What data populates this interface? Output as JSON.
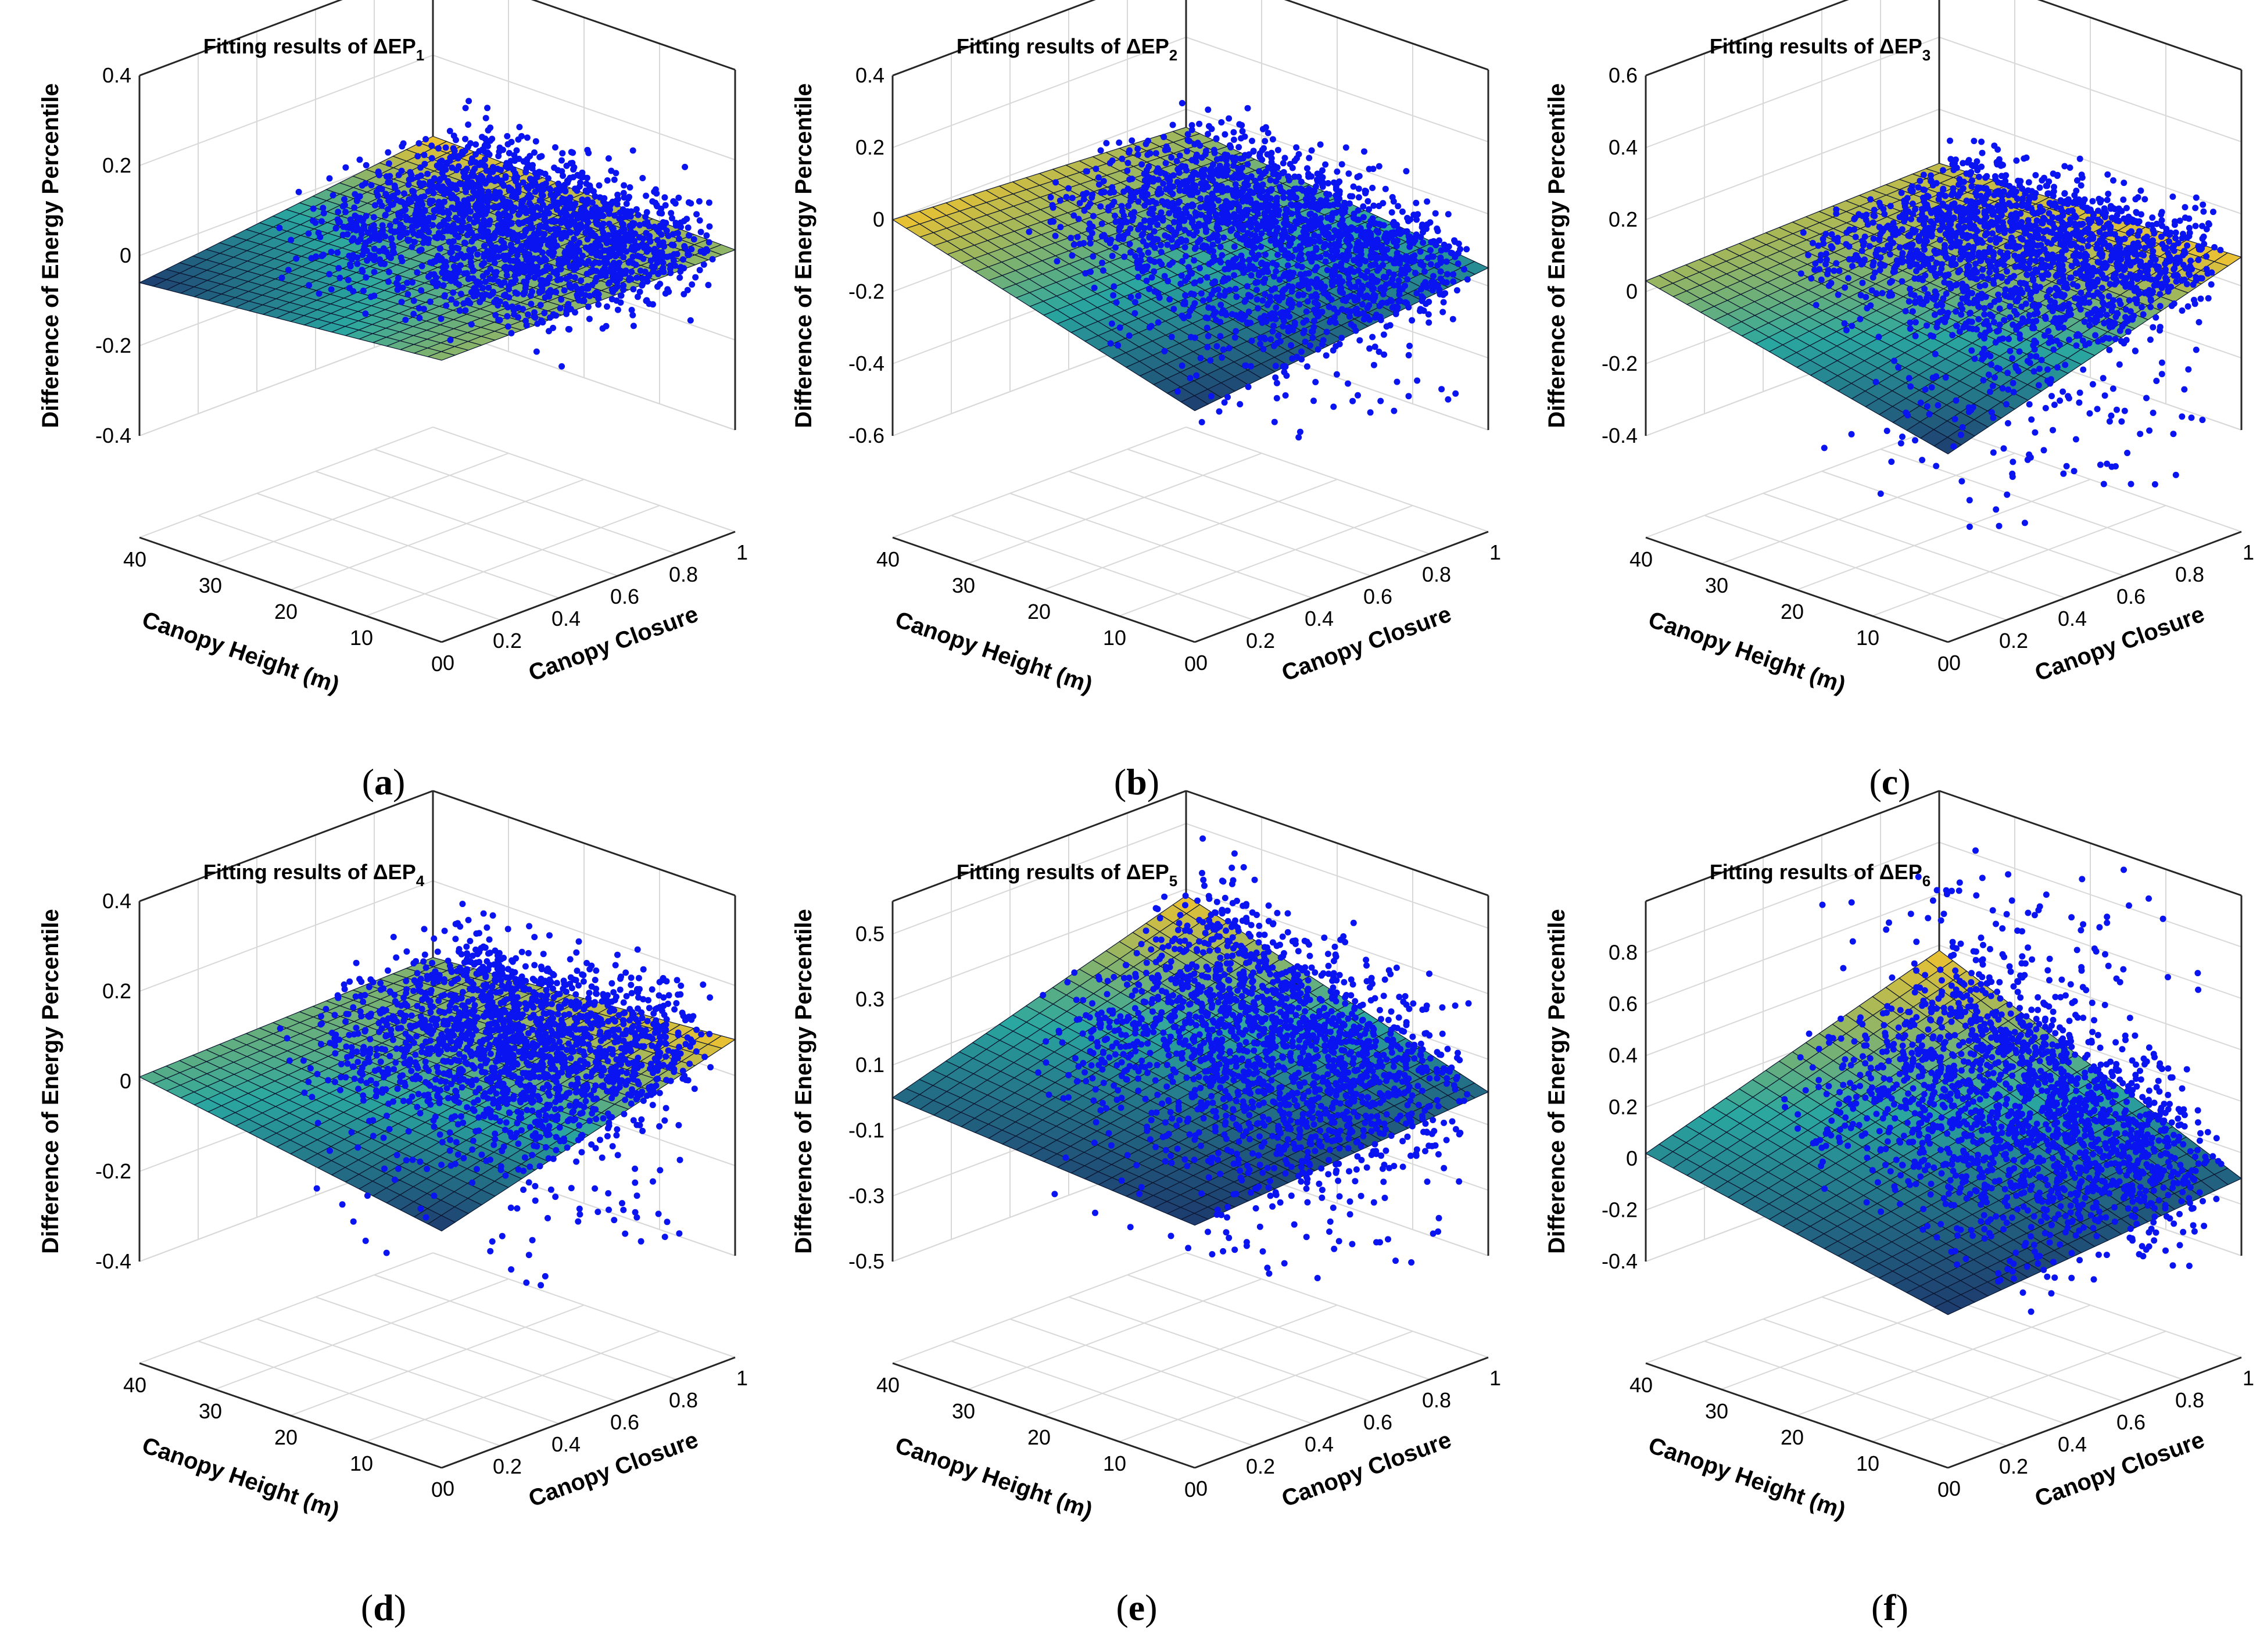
{
  "chart_data": [
    {
      "panel": "a",
      "type": "scatter",
      "surface": true,
      "title": "Fitting results of ΔEP",
      "title_sub": "1",
      "caption_letter": "a",
      "xlabel": "Canopy Closure",
      "ylabel": "Canopy Height (m)",
      "zlabel": "Difference of Energy Percentile",
      "xlim": [
        0,
        1
      ],
      "ylim": [
        0,
        40
      ],
      "zlim": [
        -0.4,
        0.4
      ],
      "xticks": [
        "0",
        "0.2",
        "0.4",
        "0.6",
        "0.8",
        "1"
      ],
      "yticks": [
        "0",
        "10",
        "20",
        "30",
        "40"
      ],
      "zticks": [
        "-0.4",
        "-0.2",
        "0",
        "0.2",
        "0.4"
      ],
      "surface_corners": {
        "x0y0": 0.0,
        "x1y0": 0.0,
        "x0y1": -0.06,
        "x1y1": 0.02
      },
      "points": {
        "count": 1800,
        "x_range": [
          0.3,
          1
        ],
        "y_range": [
          2,
          35
        ],
        "z_spread": 0.06,
        "z_min": -0.28,
        "z_max": 0.37,
        "tail": "none"
      }
    },
    {
      "panel": "b",
      "type": "scatter",
      "surface": true,
      "title": "Fitting results of ΔEP",
      "title_sub": "2",
      "caption_letter": "b",
      "xlabel": "Canopy Closure",
      "ylabel": "Canopy Height (m)",
      "zlabel": "Difference of Energy Percentile",
      "xlim": [
        0,
        1
      ],
      "ylim": [
        0,
        40
      ],
      "zlim": [
        -0.6,
        0.4
      ],
      "xticks": [
        "0",
        "0.2",
        "0.4",
        "0.6",
        "0.8",
        "1"
      ],
      "yticks": [
        "0",
        "10",
        "20",
        "30",
        "40"
      ],
      "zticks": [
        "-0.6",
        "-0.4",
        "-0.2",
        "0",
        "0.2",
        "0.4"
      ],
      "surface_corners": {
        "x0y0": -0.24,
        "x1y0": -0.15,
        "x0y1": 0.0,
        "x1y1": -0.05
      },
      "points": {
        "count": 1800,
        "x_range": [
          0.3,
          1
        ],
        "y_range": [
          2,
          35
        ],
        "z_spread": 0.07,
        "z_min": -0.53,
        "z_max": 0.37,
        "tail": "down"
      }
    },
    {
      "panel": "c",
      "type": "scatter",
      "surface": true,
      "title": "Fitting results of ΔEP",
      "title_sub": "3",
      "caption_letter": "c",
      "xlabel": "Canopy Closure",
      "ylabel": "Canopy Height (m)",
      "zlabel": "Difference of Energy Percentile",
      "xlim": [
        0,
        1
      ],
      "ylim": [
        0,
        40
      ],
      "zlim": [
        -0.4,
        0.6
      ],
      "xticks": [
        "0",
        "0.2",
        "0.4",
        "0.6",
        "0.8",
        "1"
      ],
      "yticks": [
        "0",
        "10",
        "20",
        "30",
        "40"
      ],
      "zticks": [
        "-0.4",
        "-0.2",
        "0",
        "0.2",
        "0.4",
        "0.6"
      ],
      "surface_corners": {
        "x0y0": -0.16,
        "x1y0": 0.08,
        "x0y1": 0.03,
        "x1y1": 0.05
      },
      "points": {
        "count": 1800,
        "x_range": [
          0.3,
          1
        ],
        "y_range": [
          2,
          35
        ],
        "z_spread": 0.07,
        "z_min": -0.6,
        "z_max": 0.38,
        "tail": "down"
      }
    },
    {
      "panel": "d",
      "type": "scatter",
      "surface": true,
      "title": "Fitting results of ΔEP",
      "title_sub": "4",
      "caption_letter": "d",
      "xlabel": "Canopy Closure",
      "ylabel": "Canopy Height (m)",
      "zlabel": "Difference of Energy Percentile",
      "xlim": [
        0,
        1
      ],
      "ylim": [
        0,
        40
      ],
      "zlim": [
        -0.4,
        0.4
      ],
      "xticks": [
        "0",
        "0.2",
        "0.4",
        "0.6",
        "0.8",
        "1"
      ],
      "yticks": [
        "0",
        "10",
        "20",
        "30",
        "40"
      ],
      "zticks": [
        "-0.4",
        "-0.2",
        "0",
        "0.2",
        "0.4"
      ],
      "surface_corners": {
        "x0y0": -0.1,
        "x1y0": 0.08,
        "x0y1": 0.01,
        "x1y1": 0.03
      },
      "points": {
        "count": 1800,
        "x_range": [
          0.3,
          1
        ],
        "y_range": [
          2,
          35
        ],
        "z_spread": 0.07,
        "z_min": -0.4,
        "z_max": 0.45,
        "tail": "down"
      }
    },
    {
      "panel": "e",
      "type": "scatter",
      "surface": true,
      "title": "Fitting results of ΔEP",
      "title_sub": "5",
      "caption_letter": "e",
      "xlabel": "Canopy Closure",
      "ylabel": "Canopy Height (m)",
      "zlabel": "Difference of Energy Percentile",
      "xlim": [
        0,
        1
      ],
      "ylim": [
        0,
        40
      ],
      "zlim": [
        -0.5,
        0.6
      ],
      "xticks": [
        "0",
        "0.2",
        "0.4",
        "0.6",
        "0.8",
        "1"
      ],
      "yticks": [
        "0",
        "10",
        "20",
        "30",
        "40"
      ],
      "zticks": [
        "-0.5",
        "-0.3",
        "-0.1",
        "0.1",
        "0.3",
        "0.5"
      ],
      "surface_corners": {
        "x0y0": -0.07,
        "x1y0": 0.0,
        "x0y1": 0.0,
        "x1y1": 0.28
      },
      "points": {
        "count": 1800,
        "x_range": [
          0.3,
          1
        ],
        "y_range": [
          2,
          35
        ],
        "z_spread": 0.12,
        "z_min": -0.47,
        "z_max": 0.55,
        "tail": "down"
      }
    },
    {
      "panel": "f",
      "type": "scatter",
      "surface": true,
      "title": "Fitting results of ΔEP",
      "title_sub": "6",
      "caption_letter": "f",
      "xlabel": "Canopy Closure",
      "ylabel": "Canopy Height (m)",
      "zlabel": "Difference of Energy Percentile",
      "xlim": [
        0,
        1
      ],
      "ylim": [
        0,
        40
      ],
      "zlim": [
        -0.4,
        1.0
      ],
      "xticks": [
        "0",
        "0.2",
        "0.4",
        "0.6",
        "0.8",
        "1"
      ],
      "yticks": [
        "0",
        "10",
        "20",
        "30",
        "40"
      ],
      "zticks": [
        "-0.4",
        "-0.2",
        "0",
        "0.2",
        "0.4",
        "0.6",
        "0.8"
      ],
      "surface_corners": {
        "x0y0": -0.2,
        "x1y0": -0.1,
        "x0y1": 0.02,
        "x1y1": 0.38
      },
      "points": {
        "count": 1800,
        "x_range": [
          0.3,
          1
        ],
        "y_range": [
          2,
          35
        ],
        "z_spread": 0.16,
        "z_min": -0.41,
        "z_max": 0.95,
        "tail": "up"
      }
    }
  ],
  "colors": {
    "point": "#0a14f0",
    "grid": "#d8d8d8",
    "axis": "#262626",
    "surface_low": "#1d3b6e",
    "surface_mid": "#2aa7a0",
    "surface_high": "#f2c22e"
  }
}
